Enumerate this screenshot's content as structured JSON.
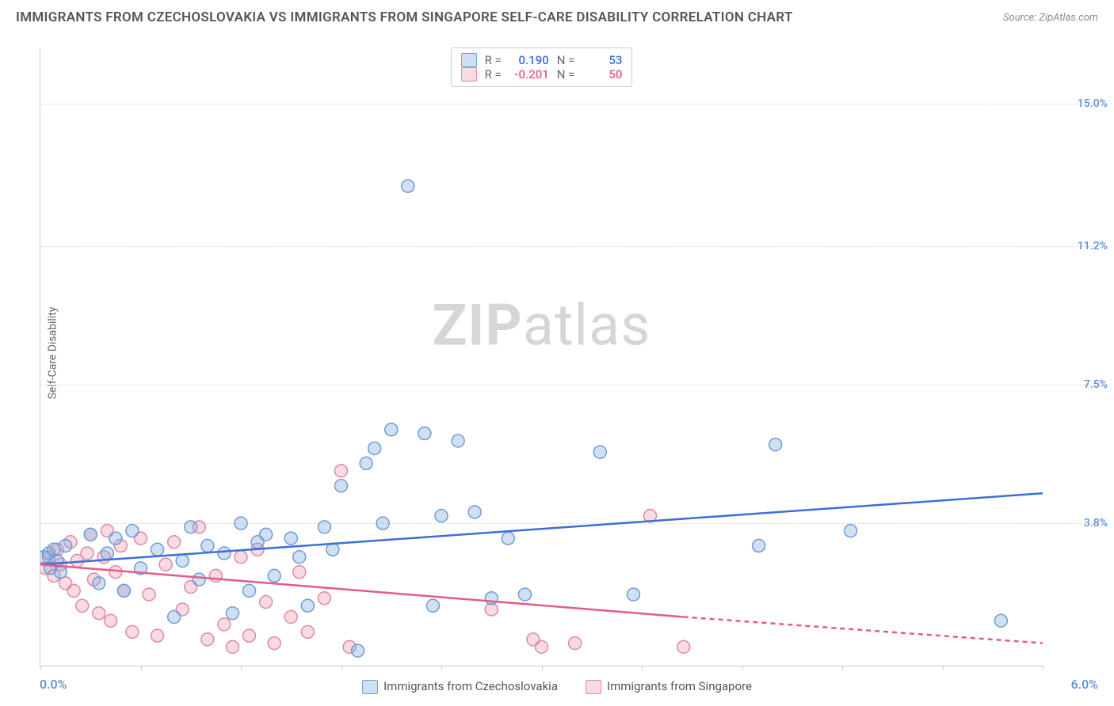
{
  "title": "IMMIGRANTS FROM CZECHOSLOVAKIA VS IMMIGRANTS FROM SINGAPORE SELF-CARE DISABILITY CORRELATION CHART",
  "source": "Source: ZipAtlas.com",
  "y_axis_label": "Self-Care Disability",
  "watermark": {
    "part1": "ZIP",
    "part2": "atlas"
  },
  "x_axis": {
    "min": 0.0,
    "max": 6.0,
    "left_label": "0.0%",
    "right_label": "6.0%",
    "tick_positions": [
      0.0,
      0.6,
      1.2,
      1.8,
      2.4,
      3.0,
      3.6,
      4.2,
      4.8,
      5.4,
      6.0
    ],
    "label_color": "#5b8fd6"
  },
  "y_axis": {
    "min": 0.0,
    "max": 16.5,
    "ticks": [
      {
        "value": 3.8,
        "label": "3.8%"
      },
      {
        "value": 7.5,
        "label": "7.5%"
      },
      {
        "value": 11.2,
        "label": "11.2%"
      },
      {
        "value": 15.0,
        "label": "15.0%"
      }
    ],
    "label_color": "#5b8fd6"
  },
  "series": {
    "a": {
      "name": "Immigrants from Czechoslovakia",
      "fill": "rgba(120,165,220,0.35)",
      "stroke": "#6f9dd6",
      "line_color": "#3b6fd6",
      "r_value": "0.190",
      "n_value": "53",
      "trend": {
        "x1": 0.0,
        "y1": 2.7,
        "x2": 6.0,
        "y2": 4.6
      },
      "points": [
        [
          0.02,
          2.9
        ],
        [
          0.05,
          3.0
        ],
        [
          0.06,
          2.6
        ],
        [
          0.08,
          3.1
        ],
        [
          0.1,
          2.8
        ],
        [
          0.12,
          2.5
        ],
        [
          0.15,
          3.2
        ],
        [
          0.3,
          3.5
        ],
        [
          0.35,
          2.2
        ],
        [
          0.4,
          3.0
        ],
        [
          0.45,
          3.4
        ],
        [
          0.5,
          2.0
        ],
        [
          0.55,
          3.6
        ],
        [
          0.6,
          2.6
        ],
        [
          0.7,
          3.1
        ],
        [
          0.8,
          1.3
        ],
        [
          0.85,
          2.8
        ],
        [
          0.9,
          3.7
        ],
        [
          0.95,
          2.3
        ],
        [
          1.0,
          3.2
        ],
        [
          1.1,
          3.0
        ],
        [
          1.15,
          1.4
        ],
        [
          1.2,
          3.8
        ],
        [
          1.25,
          2.0
        ],
        [
          1.3,
          3.3
        ],
        [
          1.35,
          3.5
        ],
        [
          1.4,
          2.4
        ],
        [
          1.5,
          3.4
        ],
        [
          1.55,
          2.9
        ],
        [
          1.6,
          1.6
        ],
        [
          1.7,
          3.7
        ],
        [
          1.75,
          3.1
        ],
        [
          1.8,
          4.8
        ],
        [
          1.9,
          0.4
        ],
        [
          1.95,
          5.4
        ],
        [
          2.0,
          5.8
        ],
        [
          2.05,
          3.8
        ],
        [
          2.1,
          6.3
        ],
        [
          2.2,
          12.8
        ],
        [
          2.3,
          6.2
        ],
        [
          2.35,
          1.6
        ],
        [
          2.4,
          4.0
        ],
        [
          2.5,
          6.0
        ],
        [
          2.6,
          4.1
        ],
        [
          2.7,
          1.8
        ],
        [
          2.8,
          3.4
        ],
        [
          2.9,
          1.9
        ],
        [
          3.35,
          5.7
        ],
        [
          3.55,
          1.9
        ],
        [
          4.3,
          3.2
        ],
        [
          4.4,
          5.9
        ],
        [
          4.85,
          3.6
        ],
        [
          5.75,
          1.2
        ]
      ]
    },
    "b": {
      "name": "Immigrants from Singapore",
      "fill": "rgba(235,150,175,0.35)",
      "stroke": "#e08aa5",
      "line_color": "#e55a8a",
      "r_value": "-0.201",
      "n_value": "50",
      "trend_solid": {
        "x1": 0.0,
        "y1": 2.7,
        "x2": 3.85,
        "y2": 1.3
      },
      "trend_dash": {
        "x1": 3.85,
        "y1": 1.3,
        "x2": 6.0,
        "y2": 0.6
      },
      "points": [
        [
          0.03,
          2.6
        ],
        [
          0.05,
          2.9
        ],
        [
          0.08,
          2.4
        ],
        [
          0.1,
          3.1
        ],
        [
          0.12,
          2.7
        ],
        [
          0.15,
          2.2
        ],
        [
          0.18,
          3.3
        ],
        [
          0.2,
          2.0
        ],
        [
          0.22,
          2.8
        ],
        [
          0.25,
          1.6
        ],
        [
          0.28,
          3.0
        ],
        [
          0.3,
          3.5
        ],
        [
          0.32,
          2.3
        ],
        [
          0.35,
          1.4
        ],
        [
          0.38,
          2.9
        ],
        [
          0.4,
          3.6
        ],
        [
          0.42,
          1.2
        ],
        [
          0.45,
          2.5
        ],
        [
          0.48,
          3.2
        ],
        [
          0.5,
          2.0
        ],
        [
          0.55,
          0.9
        ],
        [
          0.6,
          3.4
        ],
        [
          0.65,
          1.9
        ],
        [
          0.7,
          0.8
        ],
        [
          0.75,
          2.7
        ],
        [
          0.8,
          3.3
        ],
        [
          0.85,
          1.5
        ],
        [
          0.9,
          2.1
        ],
        [
          0.95,
          3.7
        ],
        [
          1.0,
          0.7
        ],
        [
          1.05,
          2.4
        ],
        [
          1.1,
          1.1
        ],
        [
          1.15,
          0.5
        ],
        [
          1.2,
          2.9
        ],
        [
          1.25,
          0.8
        ],
        [
          1.3,
          3.1
        ],
        [
          1.35,
          1.7
        ],
        [
          1.4,
          0.6
        ],
        [
          1.5,
          1.3
        ],
        [
          1.55,
          2.5
        ],
        [
          1.6,
          0.9
        ],
        [
          1.7,
          1.8
        ],
        [
          1.8,
          5.2
        ],
        [
          1.85,
          0.5
        ],
        [
          2.7,
          1.5
        ],
        [
          2.95,
          0.7
        ],
        [
          3.0,
          0.5
        ],
        [
          3.2,
          0.6
        ],
        [
          3.65,
          4.0
        ],
        [
          3.85,
          0.5
        ]
      ]
    }
  },
  "marker_radius": 8,
  "marker_stroke_width": 1.5,
  "trend_line_width": 2.5,
  "stats_labels": {
    "r": "R =",
    "n": "N ="
  }
}
